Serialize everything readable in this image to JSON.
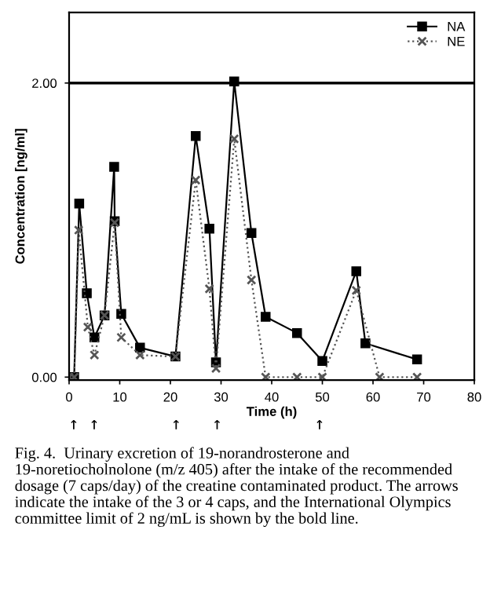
{
  "chart_data": {
    "type": "line",
    "xlabel": "Time (h)",
    "ylabel": "Concentration [ng/ml]",
    "xlim": [
      0,
      80
    ],
    "ylim": [
      -0.02,
      2.48
    ],
    "xticks": [
      0,
      10,
      20,
      30,
      40,
      50,
      60,
      70,
      80
    ],
    "yticks": [
      {
        "value": 0,
        "label": "0.00"
      },
      {
        "value": 2,
        "label": "2.00"
      }
    ],
    "grid": false,
    "legend": "top right",
    "series": [
      {
        "name": "NA",
        "color": "#000000",
        "marker": "square",
        "line_style": "solid",
        "x": [
          0,
          1,
          2,
          3.5,
          5,
          7,
          8.9,
          9,
          10.3,
          14,
          21,
          25,
          27.7,
          29,
          32.6,
          36,
          38.8,
          45,
          50,
          56.7,
          58.5,
          68.7
        ],
        "values": [
          0,
          0,
          1.18,
          0.57,
          0.27,
          0.42,
          1.43,
          1.06,
          0.43,
          0.2,
          0.14,
          1.64,
          1.01,
          0.1,
          2.01,
          0.98,
          0.41,
          0.3,
          0.11,
          0.72,
          0.23,
          0.12
        ]
      },
      {
        "name": "NE",
        "color": "#555555",
        "marker": "cross",
        "line_style": "dotted",
        "x": [
          0,
          1,
          1.9,
          3.7,
          5,
          7,
          9,
          10.3,
          14,
          21,
          25,
          27.7,
          29,
          32.6,
          36,
          38.8,
          45,
          50,
          56.7,
          61.3,
          68.7
        ],
        "values": [
          0,
          0,
          1.0,
          0.34,
          0.15,
          0.42,
          1.05,
          0.27,
          0.15,
          0.14,
          1.34,
          0.6,
          0.06,
          1.62,
          0.66,
          0,
          0,
          0,
          0.59,
          0,
          0
        ]
      }
    ],
    "ref_lines": [
      {
        "axis": "y",
        "value": 2,
        "color": "#000000"
      }
    ],
    "annotations": [
      "↑ ↑       ↑   ↑         ↑",
      "Fig. 4.  Urinary excretion of 19-norandrosterone and 19-noretiocholnolone (m/z 405) after the intake of the recommended dosage (7 caps/day) of the creatine contaminated product. The arrows indicate the intake of the 3 or 4 caps, and the International Olympics committee limit of 2 ng/mL is shown by the bold line."
    ]
  }
}
